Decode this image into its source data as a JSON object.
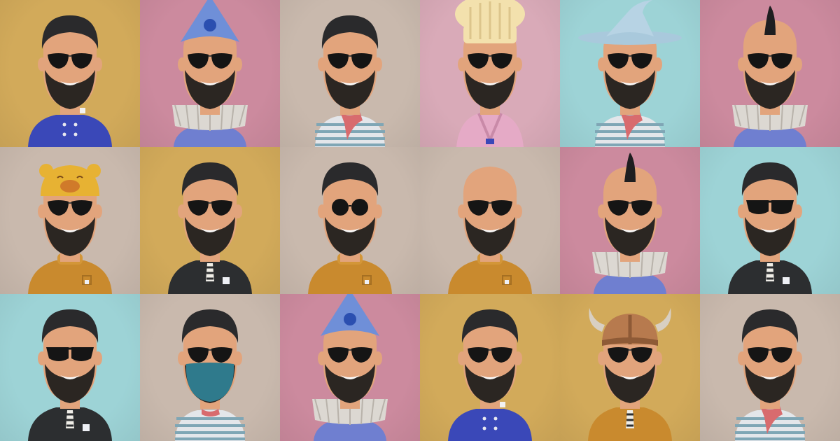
{
  "palette": {
    "mustard": "#d2aa5a",
    "pink": "#cc8a9e",
    "beige": "#c9b9ad",
    "lightpink": "#d9aab8",
    "cyan": "#9dd3d6",
    "skin": "#e2a47c",
    "beard": "#2b2622",
    "hair": "#2a2a2c",
    "glasses": "#151515"
  },
  "avatars": [
    {
      "bg": "mustard",
      "hat": "none",
      "glasses": "aviator",
      "outfit": "blue-coat"
    },
    {
      "bg": "pink",
      "hat": "party-hat",
      "glasses": "aviator",
      "outfit": "ruff-collar"
    },
    {
      "bg": "beige",
      "hat": "none",
      "glasses": "aviator",
      "outfit": "striped-shirt"
    },
    {
      "bg": "lightpink",
      "hat": "chef-hat",
      "glasses": "aviator",
      "outfit": "pink-robe"
    },
    {
      "bg": "cyan",
      "hat": "wizard-hat",
      "glasses": "aviator",
      "outfit": "striped-shirt"
    },
    {
      "bg": "pink",
      "hat": "mohawk",
      "glasses": "aviator",
      "outfit": "ruff-collar"
    },
    {
      "bg": "beige",
      "hat": "bear-hat",
      "glasses": "aviator",
      "outfit": "orange-sweater"
    },
    {
      "bg": "mustard",
      "hat": "none",
      "glasses": "aviator",
      "outfit": "black-shirt"
    },
    {
      "bg": "beige",
      "hat": "none",
      "glasses": "round",
      "outfit": "orange-sweater"
    },
    {
      "bg": "beige",
      "hat": "bald",
      "glasses": "aviator",
      "outfit": "orange-sweater"
    },
    {
      "bg": "pink",
      "hat": "mohawk",
      "glasses": "aviator",
      "outfit": "ruff-collar"
    },
    {
      "bg": "cyan",
      "hat": "none",
      "glasses": "wayfarer",
      "outfit": "black-shirt"
    },
    {
      "bg": "cyan",
      "hat": "none",
      "glasses": "wayfarer",
      "outfit": "black-shirt"
    },
    {
      "bg": "beige",
      "hat": "none",
      "glasses": "aviator",
      "outfit": "striped-mask"
    },
    {
      "bg": "pink",
      "hat": "party-hat",
      "glasses": "aviator",
      "outfit": "ruff-collar"
    },
    {
      "bg": "mustard",
      "hat": "none",
      "glasses": "aviator",
      "outfit": "blue-coat"
    },
    {
      "bg": "mustard",
      "hat": "viking-helmet",
      "glasses": "aviator",
      "outfit": "orange-black"
    },
    {
      "bg": "beige",
      "hat": "none",
      "glasses": "aviator",
      "outfit": "striped-shirt"
    }
  ]
}
